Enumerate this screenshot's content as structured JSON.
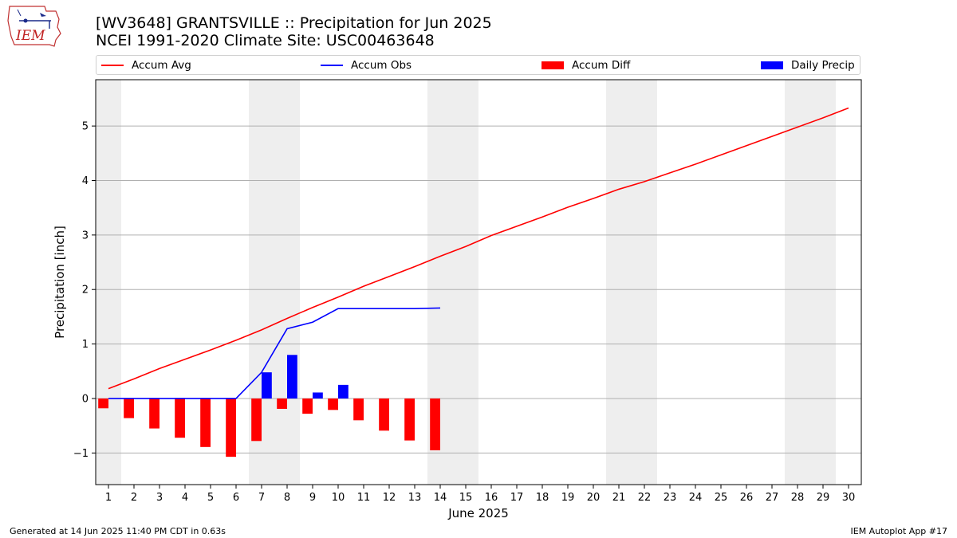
{
  "title_line1": "[WV3648] GRANTSVILLE :: Precipitation for Jun 2025",
  "title_line2": "NCEI 1991-2020 Climate Site: USC00463648",
  "logo_text": "IEM",
  "footer_left": "Generated at 14 Jun 2025 11:40 PM CDT in 0.63s",
  "footer_right": "IEM Autoplot App #17",
  "chart_data": {
    "type": "bar",
    "xlabel": "June 2025",
    "ylabel": "Precipitation [inch]",
    "xlim": [
      0.5,
      30.5
    ],
    "ylim": [
      -1.58,
      5.85
    ],
    "x_ticks": [
      1,
      2,
      3,
      4,
      5,
      6,
      7,
      8,
      9,
      10,
      11,
      12,
      13,
      14,
      15,
      16,
      17,
      18,
      19,
      20,
      21,
      22,
      23,
      24,
      25,
      26,
      27,
      28,
      29,
      30
    ],
    "y_ticks": [
      -1,
      0,
      1,
      2,
      3,
      4,
      5
    ],
    "y_tick_labels": [
      "−1",
      "0",
      "1",
      "2",
      "3",
      "4",
      "5"
    ],
    "grid": "horizontal",
    "legend_position": "top",
    "weekend_shading": [
      [
        0.5,
        1.5
      ],
      [
        6.5,
        8.5
      ],
      [
        13.5,
        15.5
      ],
      [
        20.5,
        22.5
      ],
      [
        27.5,
        29.5
      ]
    ],
    "days": [
      1,
      2,
      3,
      4,
      5,
      6,
      7,
      8,
      9,
      10,
      11,
      12,
      13,
      14,
      15,
      16,
      17,
      18,
      19,
      20,
      21,
      22,
      23,
      24,
      25,
      26,
      27,
      28,
      29,
      30
    ],
    "series": [
      {
        "name": "Accum Avg",
        "kind": "line",
        "color": "#ff0000",
        "x": [
          1,
          2,
          3,
          4,
          5,
          6,
          7,
          8,
          9,
          10,
          11,
          12,
          13,
          14,
          15,
          16,
          17,
          18,
          19,
          20,
          21,
          22,
          23,
          24,
          25,
          26,
          27,
          28,
          29,
          30
        ],
        "values": [
          0.18,
          0.36,
          0.55,
          0.72,
          0.89,
          1.07,
          1.26,
          1.47,
          1.67,
          1.86,
          2.06,
          2.24,
          2.42,
          2.61,
          2.79,
          2.99,
          3.16,
          3.33,
          3.51,
          3.67,
          3.84,
          3.98,
          4.14,
          4.3,
          4.47,
          4.64,
          4.81,
          4.98,
          5.15,
          5.33
        ]
      },
      {
        "name": "Accum Obs",
        "kind": "line",
        "color": "#0000ff",
        "x": [
          1,
          2,
          3,
          4,
          5,
          6,
          7,
          8,
          9,
          10,
          11,
          12,
          13,
          14
        ],
        "values": [
          0,
          0,
          0,
          0,
          0,
          0,
          0.48,
          1.28,
          1.4,
          1.65,
          1.65,
          1.65,
          1.65,
          1.66
        ]
      },
      {
        "name": "Accum Diff",
        "kind": "bar",
        "color": "#ff0000",
        "x": [
          1,
          2,
          3,
          4,
          5,
          6,
          7,
          8,
          9,
          10,
          11,
          12,
          13,
          14
        ],
        "values": [
          -0.18,
          -0.36,
          -0.55,
          -0.72,
          -0.89,
          -1.07,
          -0.78,
          -0.19,
          -0.28,
          -0.21,
          -0.4,
          -0.59,
          -0.77,
          -0.95
        ]
      },
      {
        "name": "Daily Precip",
        "kind": "bar",
        "color": "#0000ff",
        "x": [
          1,
          2,
          3,
          4,
          5,
          6,
          7,
          8,
          9,
          10,
          11,
          12,
          13,
          14
        ],
        "values": [
          0,
          0,
          0,
          0,
          0,
          0,
          0.48,
          0.8,
          0.11,
          0.25,
          0,
          0,
          0,
          0
        ]
      }
    ]
  }
}
